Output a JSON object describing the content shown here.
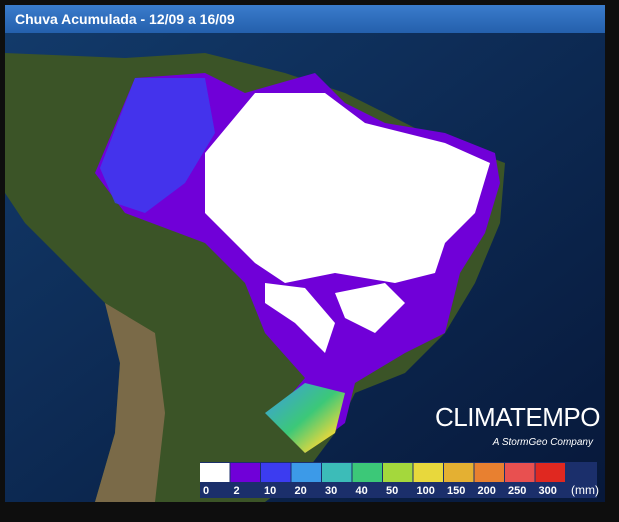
{
  "header": {
    "title": "Chuva Acumulada - 12/09 a 16/09"
  },
  "legend": {
    "colors": [
      "#ffffff",
      "#7000d8",
      "#3c3cf0",
      "#3c9ae8",
      "#3cbcb8",
      "#3cc878",
      "#a4d83c",
      "#e8d83c",
      "#e4b032",
      "#e88030",
      "#e85050",
      "#e02820"
    ],
    "labels": [
      0,
      2,
      10,
      20,
      30,
      40,
      50,
      100,
      150,
      200,
      250,
      300
    ],
    "unit": "(mm)"
  },
  "logo": {
    "name": "CLIMATEMPO",
    "tagline": "A StormGeo Company"
  }
}
